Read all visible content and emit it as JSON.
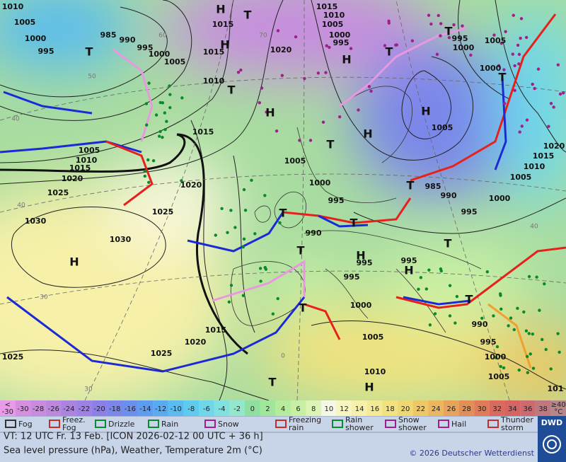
{
  "map": {
    "pressure_labels": [
      "1010",
      "1005",
      "1000",
      "995",
      "985",
      "990",
      "995",
      "1000",
      "1005",
      "1015",
      "1015",
      "1020",
      "1010",
      "1015",
      "1010",
      "1005",
      "1000",
      "995",
      "995",
      "1000",
      "1005",
      "1000",
      "1005",
      "1015",
      "1005",
      "1010",
      "1015",
      "1020",
      "1025",
      "1020",
      "1025",
      "1030",
      "1030",
      "1005",
      "1000",
      "995",
      "990",
      "995",
      "995",
      "995",
      "1000",
      "985",
      "990",
      "995",
      "1000",
      "1015",
      "1010",
      "1005",
      "1020",
      "1015",
      "1020",
      "1025",
      "1025",
      "1005",
      "1010",
      "990",
      "995",
      "1000",
      "1005",
      "101"
    ],
    "highs": [
      "H",
      "H",
      "H",
      "H",
      "H",
      "H",
      "H",
      "H",
      "H",
      "H"
    ],
    "lows": [
      "T",
      "T",
      "T",
      "T",
      "T",
      "T",
      "T",
      "T",
      "T",
      "T",
      "T",
      "T",
      "T",
      "T",
      "T"
    ],
    "isotherm_labels": [
      "60",
      "70",
      "50",
      "40",
      "40",
      "30",
      "30",
      "40",
      "0"
    ]
  },
  "legend": {
    "scale": {
      "low_label": {
        "top": "<",
        "bottom": "-30"
      },
      "values": [
        -30,
        -28,
        -26,
        -24,
        -22,
        -20,
        -18,
        -16,
        -14,
        -12,
        -10,
        -8,
        -6,
        -4,
        -2,
        0,
        2,
        4,
        6,
        8,
        10,
        12,
        14,
        16,
        18,
        20,
        22,
        24,
        26,
        28,
        30,
        32,
        34,
        36,
        38
      ],
      "high_label": {
        "top": "≥40",
        "bottom": "°C"
      },
      "low_color": "#e89be8",
      "colors": [
        "#d68fe0",
        "#c98be0",
        "#bb87e0",
        "#ad83e2",
        "#9f80e4",
        "#8c80e6",
        "#7a86ea",
        "#6a8fee",
        "#5c9cf2",
        "#58abf2",
        "#58bcf0",
        "#5ecbee",
        "#6ed8ea",
        "#80e2e0",
        "#92e8cc",
        "#8ee0a0",
        "#a0e69a",
        "#b4ec9c",
        "#c8f0a4",
        "#dcf4b4",
        "#f4f8e4",
        "#f8f6c0",
        "#f6f0a8",
        "#f4ea94",
        "#f2e27e",
        "#f0d870",
        "#eec864",
        "#ecb65e",
        "#e8a25a",
        "#e48e56",
        "#e07a58",
        "#dc6a5c",
        "#d66462",
        "#cc6a70",
        "#c0787e"
      ],
      "high_color": "#b8868a"
    },
    "items": [
      "Fog",
      "Freez. Fog",
      "Drizzle",
      "Rain",
      "Snow",
      "Freezing rain",
      "Rain shower",
      "Snow shower",
      "Hail",
      "Thunder storm"
    ]
  },
  "footer": {
    "valid_time": "VT: 12 UTC Fr.  13 Feb. [ICON 2026-02-12  00 UTC + 36 h]",
    "description": "Sea level pressure (hPa), Weather, Temperature 2m (°C)",
    "copyright": "© 2026 Deutscher Wetterdienst",
    "logo": "DWD"
  }
}
